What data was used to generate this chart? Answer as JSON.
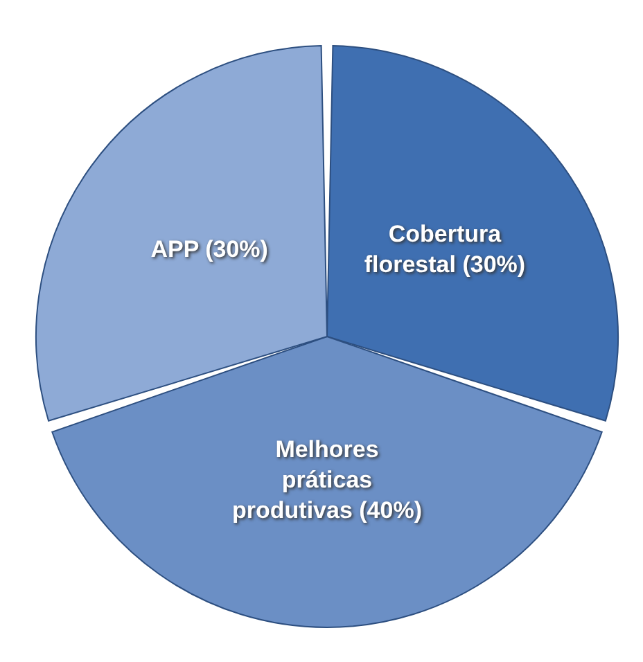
{
  "chart_data": {
    "type": "pie",
    "categories": [
      "Cobertura florestal",
      "Melhores práticas produtivas",
      "APP"
    ],
    "values": [
      30,
      40,
      30
    ],
    "colors": [
      "#3f6fb1",
      "#6b8fc5",
      "#8eaad6"
    ],
    "value_labels": [
      "(30%)",
      "(40%)",
      "(30%)"
    ]
  }
}
